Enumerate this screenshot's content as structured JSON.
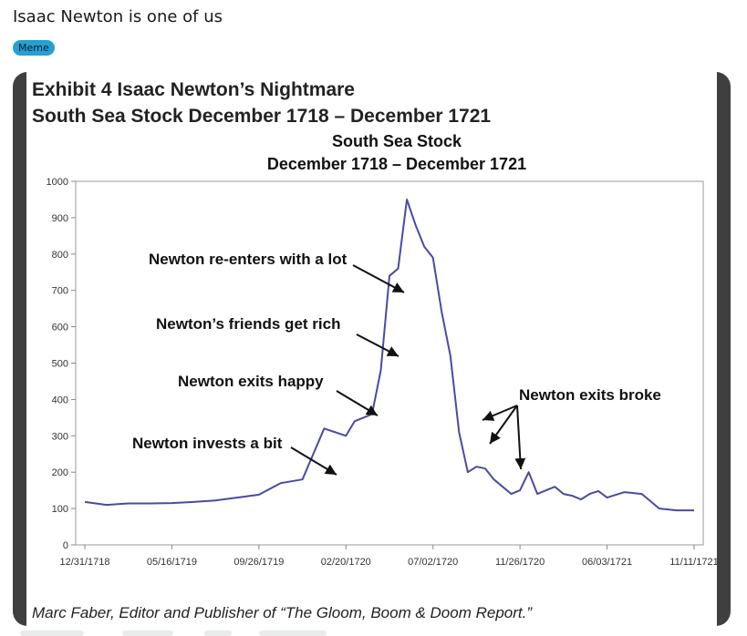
{
  "post": {
    "title": "Isaac Newton is one of us",
    "flair": "Meme"
  },
  "image": {
    "exhibit_line1": "Exhibit 4  Isaac Newton’s Nightmare",
    "exhibit_line2": "South Sea Stock December 1718 – December 1721",
    "footer": "Marc Faber, Editor and Publisher of “The Gloom, Boom & Doom Report.”"
  },
  "chart_data": {
    "type": "line",
    "title": "South Sea Stock",
    "subtitle": "December 1718 – December 1721",
    "xlabel": "",
    "ylabel": "",
    "ylim": [
      0,
      1000
    ],
    "yticks": [
      "0",
      "100",
      "200",
      "300",
      "400",
      "500",
      "600",
      "700",
      "800",
      "900",
      "1000"
    ],
    "xtick_labels": [
      "12/31/1718",
      "05/16/1719",
      "09/26/1719",
      "02/20/1720",
      "07/02/1720",
      "11/26/1720",
      "06/03/1721",
      "11/11/1721"
    ],
    "grid": false,
    "series": [
      {
        "color": "#4b4aa3",
        "x_index": [
          0.0,
          0.25,
          0.5,
          0.75,
          1.0,
          1.25,
          1.5,
          1.75,
          2.0,
          2.25,
          2.5,
          2.75,
          3.0,
          3.1,
          3.2,
          3.3,
          3.4,
          3.5,
          3.6,
          3.7,
          3.8,
          3.9,
          4.0,
          4.1,
          4.2,
          4.3,
          4.4,
          4.5,
          4.6,
          4.7,
          4.8,
          4.9,
          5.0,
          5.1,
          5.2,
          5.3,
          5.4,
          5.5,
          5.6,
          5.7,
          5.8,
          5.9,
          6.0,
          6.2,
          6.4,
          6.6,
          6.8,
          7.0
        ],
        "y": [
          118,
          110,
          114,
          114,
          115,
          118,
          122,
          130,
          138,
          170,
          180,
          320,
          300,
          340,
          350,
          360,
          480,
          740,
          760,
          950,
          880,
          820,
          790,
          640,
          520,
          310,
          200,
          215,
          210,
          180,
          160,
          140,
          150,
          200,
          140,
          150,
          160,
          140,
          135,
          125,
          140,
          148,
          130,
          145,
          140,
          100,
          95,
          95
        ]
      }
    ],
    "annotations": [
      "Newton re-enters with a lot",
      "Newton’s friends get rich",
      "Newton exits happy",
      "Newton invests a bit",
      "Newton exits broke"
    ]
  }
}
